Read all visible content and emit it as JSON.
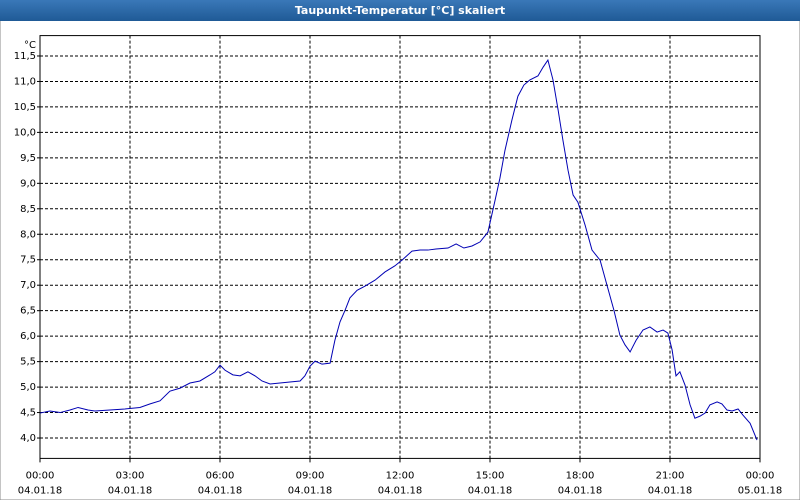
{
  "chart_data": {
    "type": "line",
    "title": "Taupunkt-Temperatur [°C] skaliert",
    "y_unit": "°C",
    "x": [
      0,
      0.33,
      0.67,
      1,
      1.27,
      1.6,
      1.83,
      2.33,
      2.83,
      3.33,
      3.67,
      4,
      4.33,
      4.67,
      5,
      5.33,
      5.67,
      5.83,
      6,
      6.17,
      6.43,
      6.67,
      6.93,
      7.17,
      7.4,
      7.67,
      8,
      8.33,
      8.67,
      8.83,
      9,
      9.17,
      9.4,
      9.67,
      9.83,
      10,
      10.17,
      10.33,
      10.57,
      10.83,
      11.17,
      11.5,
      11.83,
      12.1,
      12.4,
      12.67,
      12.93,
      13.2,
      13.6,
      13.87,
      14.13,
      14.4,
      14.67,
      14.93,
      15.17,
      15.33,
      15.5,
      15.73,
      15.93,
      16.13,
      16.33,
      16.6,
      16.77,
      16.93,
      17.1,
      17.27,
      17.43,
      17.6,
      17.77,
      17.93,
      18.17,
      18.4,
      18.67,
      18.9,
      19.13,
      19.33,
      19.5,
      19.67,
      19.87,
      20.1,
      20.33,
      20.57,
      20.77,
      20.93,
      21.07,
      21.2,
      21.33,
      21.5,
      21.67,
      21.83,
      22,
      22.17,
      22.33,
      22.57,
      22.73,
      22.9,
      23.07,
      23.27,
      23.43,
      23.67,
      23.9
    ],
    "series": [
      {
        "color": "#0000b4",
        "values": [
          4.49,
          4.53,
          4.5,
          4.55,
          4.6,
          4.55,
          4.53,
          4.55,
          4.57,
          4.6,
          4.67,
          4.73,
          4.92,
          4.98,
          5.08,
          5.12,
          5.24,
          5.3,
          5.43,
          5.33,
          5.24,
          5.22,
          5.3,
          5.22,
          5.12,
          5.06,
          5.08,
          5.1,
          5.12,
          5.22,
          5.41,
          5.51,
          5.45,
          5.47,
          5.92,
          6.28,
          6.51,
          6.75,
          6.9,
          6.98,
          7.1,
          7.26,
          7.38,
          7.51,
          7.67,
          7.69,
          7.69,
          7.71,
          7.73,
          7.81,
          7.73,
          7.77,
          7.85,
          8.04,
          8.67,
          9.1,
          9.65,
          10.24,
          10.71,
          10.93,
          11.03,
          11.11,
          11.28,
          11.42,
          11.03,
          10.44,
          9.85,
          9.26,
          8.77,
          8.63,
          8.18,
          7.69,
          7.49,
          7.0,
          6.51,
          6.02,
          5.83,
          5.69,
          5.92,
          6.12,
          6.18,
          6.08,
          6.12,
          6.06,
          5.73,
          5.22,
          5.3,
          5.04,
          4.65,
          4.39,
          4.43,
          4.49,
          4.65,
          4.71,
          4.67,
          4.55,
          4.53,
          4.57,
          4.45,
          4.29,
          3.96
        ]
      }
    ],
    "xlim": [
      0,
      24
    ],
    "xticks": [
      {
        "value": 0,
        "label": "00:00"
      },
      {
        "value": 3,
        "label": "03:00"
      },
      {
        "value": 6,
        "label": "06:00"
      },
      {
        "value": 9,
        "label": "09:00"
      },
      {
        "value": 12,
        "label": "12:00"
      },
      {
        "value": 15,
        "label": "15:00"
      },
      {
        "value": 18,
        "label": "18:00"
      },
      {
        "value": 21,
        "label": "21:00"
      },
      {
        "value": 24,
        "label": "00:00"
      }
    ],
    "xtick_dates": [
      "04.01.18",
      "04.01.18",
      "04.01.18",
      "04.01.18",
      "04.01.18",
      "04.01.18",
      "04.01.18",
      "04.01.18",
      "05.01.18"
    ],
    "ylim": [
      3.6,
      11.9
    ],
    "yticks": [
      {
        "value": 4,
        "label": "4,0"
      },
      {
        "value": 4.5,
        "label": "4,5"
      },
      {
        "value": 5,
        "label": "5,0"
      },
      {
        "value": 5.5,
        "label": "5,5"
      },
      {
        "value": 6,
        "label": "6,0"
      },
      {
        "value": 6.5,
        "label": "6,5"
      },
      {
        "value": 7,
        "label": "7,0"
      },
      {
        "value": 7.5,
        "label": "7,5"
      },
      {
        "value": 8,
        "label": "8,0"
      },
      {
        "value": 8.5,
        "label": "8,5"
      },
      {
        "value": 9,
        "label": "9,0"
      },
      {
        "value": 9.5,
        "label": "9,5"
      },
      {
        "value": 10,
        "label": "10,0"
      },
      {
        "value": 10.5,
        "label": "10,5"
      },
      {
        "value": 11,
        "label": "11,0"
      },
      {
        "value": 11.5,
        "label": "11,5"
      }
    ],
    "grid": true
  }
}
